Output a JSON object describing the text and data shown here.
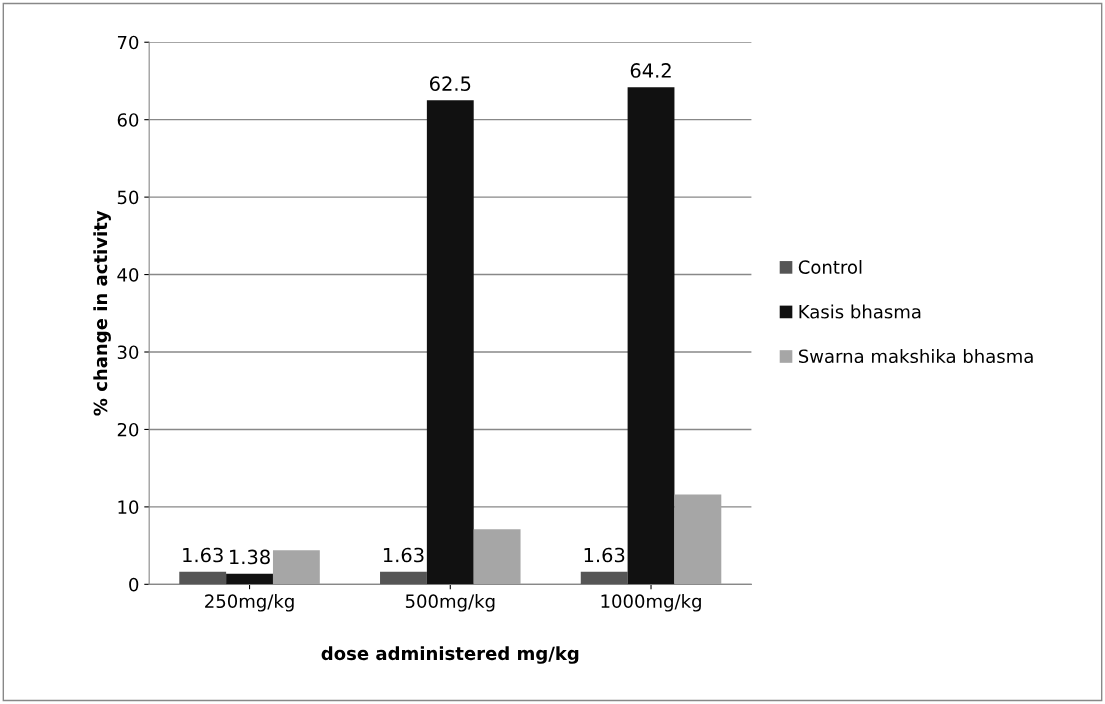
{
  "chart_data": {
    "type": "bar",
    "xlabel": "dose administered mg/kg",
    "ylabel": "% change in activity",
    "categories": [
      "250mg/kg",
      "500mg/kg",
      "1000mg/kg"
    ],
    "series": [
      {
        "name": "Control",
        "color": "#555555",
        "values": [
          1.63,
          1.63,
          1.63
        ],
        "value_labels": [
          "1.63",
          "1.63",
          "1.63"
        ]
      },
      {
        "name": "Kasis bhasma",
        "color": "#111111",
        "values": [
          1.38,
          62.5,
          64.2
        ],
        "value_labels": [
          "1.38",
          "62.5",
          "64.2"
        ]
      },
      {
        "name": "Swarna makshika bhasma",
        "color": "#a6a6a6",
        "values": [
          4.4,
          7.1,
          11.6
        ],
        "value_labels": [
          null,
          null,
          null
        ]
      }
    ],
    "ylim": [
      0,
      70
    ],
    "yticks": [
      0,
      10,
      20,
      30,
      40,
      50,
      60,
      70
    ],
    "grid": "y",
    "legend": "right"
  }
}
